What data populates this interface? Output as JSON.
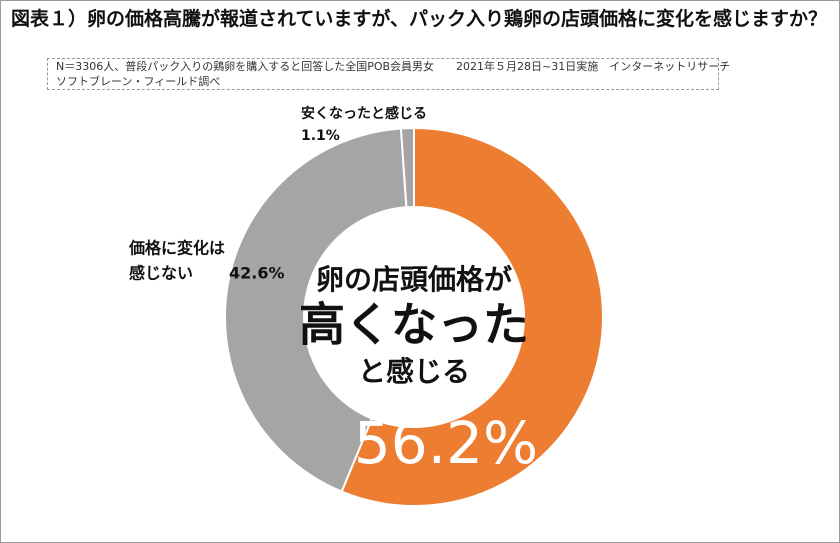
{
  "chart_data": {
    "type": "donut",
    "title": "図表１）卵の価格高騰が報道されていますが、パック入り鶏卵の店頭価格に変化を感じますか？",
    "notes": [
      "N＝3306人、普段パック入りの鶏卵を購入すると回答した全国POB会員男女　　2021年５月28日~31日実施　インターネットリサーチ",
      "ソフトブレーン・フィールド調べ"
    ],
    "categories": [
      [
        "卵の店頭価格が",
        "高くなった",
        "と感じる"
      ],
      [
        "価格に変化は",
        "感じない"
      ],
      [
        "安くなったと感じる"
      ]
    ],
    "values": [
      56.2,
      42.6,
      1.1
    ],
    "value_labels": [
      "56.2%",
      "42.6%",
      "1.1%"
    ],
    "colors": [
      "#ED7D31",
      "#A5A5A5",
      "#A5A5A5"
    ]
  }
}
